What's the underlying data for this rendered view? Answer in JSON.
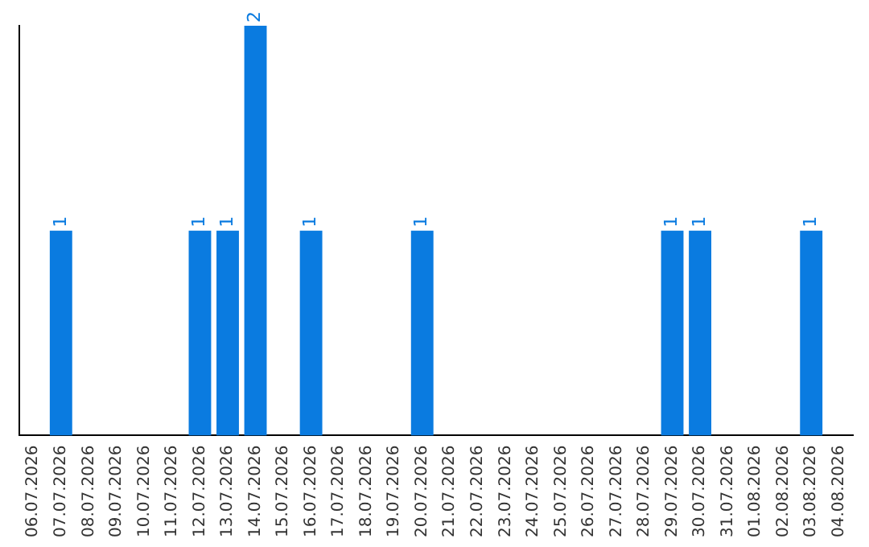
{
  "chart_data": {
    "type": "bar",
    "categories": [
      "06.07.2026",
      "07.07.2026",
      "08.07.2026",
      "09.07.2026",
      "10.07.2026",
      "11.07.2026",
      "12.07.2026",
      "13.07.2026",
      "14.07.2026",
      "15.07.2026",
      "16.07.2026",
      "17.07.2026",
      "18.07.2026",
      "19.07.2026",
      "20.07.2026",
      "21.07.2026",
      "22.07.2026",
      "23.07.2026",
      "24.07.2026",
      "25.07.2026",
      "26.07.2026",
      "27.07.2026",
      "28.07.2026",
      "29.07.2026",
      "30.07.2026",
      "31.07.2026",
      "01.08.2026",
      "02.08.2026",
      "03.08.2026",
      "04.08.2026"
    ],
    "values": [
      0,
      1,
      0,
      0,
      0,
      0,
      1,
      1,
      2,
      0,
      1,
      0,
      0,
      0,
      1,
      0,
      0,
      0,
      0,
      0,
      0,
      0,
      0,
      1,
      1,
      0,
      0,
      0,
      1,
      0
    ],
    "value_labels": [
      null,
      "1",
      null,
      null,
      null,
      null,
      "1",
      "1",
      "2",
      null,
      "1",
      null,
      null,
      null,
      "1",
      null,
      null,
      null,
      null,
      null,
      null,
      null,
      null,
      "1",
      "1",
      null,
      null,
      null,
      "1",
      null
    ],
    "color": "#0a7be0",
    "grid": false,
    "legend": false,
    "tick_labels": "x"
  }
}
